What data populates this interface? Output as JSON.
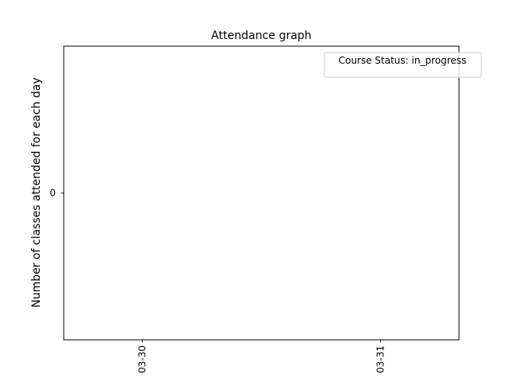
{
  "chart_data": {
    "type": "line",
    "title": "Attendance graph",
    "xlabel": "",
    "ylabel": "Number of classes attended for each day",
    "x": [
      "03-30",
      "03-31"
    ],
    "y_ticks": [
      0
    ],
    "series": [],
    "legend": {
      "title": "Course Status: in_progress",
      "placement": "top-right"
    },
    "grid": false
  }
}
